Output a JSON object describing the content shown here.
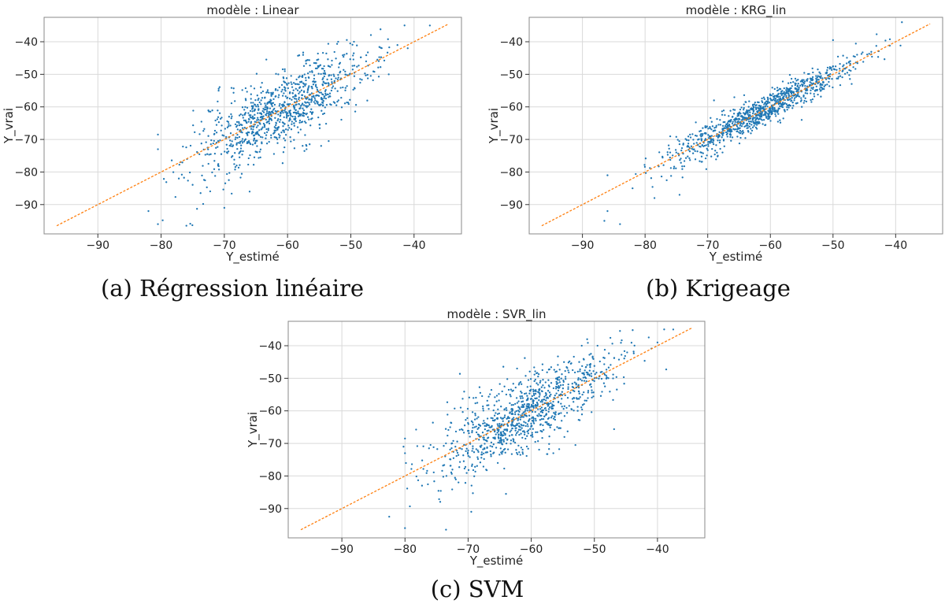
{
  "figure": {
    "captions": [
      "(a) Régression linéaire",
      "(b) Krigeage",
      "(c) SVM"
    ]
  },
  "colors": {
    "points": "#1f77b4",
    "line": "#ff7f0e",
    "grid": "#d9d9d9",
    "frame": "#888888"
  },
  "chart_data": [
    {
      "type": "scatter",
      "title": "modèle : Linear",
      "xlabel": "Y_estimé",
      "ylabel": "Y_vrai",
      "xlim": [
        -98.5,
        -32.5
      ],
      "ylim": [
        -99,
        -32.5
      ],
      "xticks": [
        -90,
        -80,
        -70,
        -60,
        -50,
        -40
      ],
      "yticks": [
        -40,
        -50,
        -60,
        -70,
        -80,
        -90
      ],
      "xtick_labels": [
        "−90",
        "−80",
        "−70",
        "−60",
        "−50",
        "−40"
      ],
      "ytick_labels": [
        "−40",
        "−50",
        "−60",
        "−70",
        "−80",
        "−90"
      ],
      "grid": true,
      "reference_line": {
        "from": [
          -96.5,
          -96.5
        ],
        "to": [
          -34.5,
          -34.5
        ],
        "style": "dashed"
      },
      "n_points": 1000,
      "point_spread": 5.5,
      "x_range_points": [
        -82,
        -38
      ],
      "sample_points": [
        {
          "x": -82,
          "y": -92
        },
        {
          "x": -80.5,
          "y": -68.5
        },
        {
          "x": -80.5,
          "y": -73
        },
        {
          "x": -80.5,
          "y": -96
        },
        {
          "x": -76,
          "y": -96.5
        },
        {
          "x": -70,
          "y": -91
        },
        {
          "x": -53.5,
          "y": -70.5
        },
        {
          "x": -57,
          "y": -73
        },
        {
          "x": -52,
          "y": -40
        },
        {
          "x": -49.5,
          "y": -40
        },
        {
          "x": -37.5,
          "y": -35
        },
        {
          "x": -41,
          "y": -42
        },
        {
          "x": -44,
          "y": -50
        },
        {
          "x": -66,
          "y": -86
        }
      ]
    },
    {
      "type": "scatter",
      "title": "modèle : KRG_lin",
      "xlabel": "Y_estimé",
      "ylabel": "Y_vrai",
      "xlim": [
        -98.5,
        -32.5
      ],
      "ylim": [
        -99,
        -32.5
      ],
      "xticks": [
        -90,
        -80,
        -70,
        -60,
        -50,
        -40
      ],
      "yticks": [
        -40,
        -50,
        -60,
        -70,
        -80,
        -90
      ],
      "xtick_labels": [
        "−90",
        "−80",
        "−70",
        "−60",
        "−50",
        "−40"
      ],
      "ytick_labels": [
        "−40",
        "−50",
        "−60",
        "−70",
        "−80",
        "−90"
      ],
      "grid": true,
      "reference_line": {
        "from": [
          -96.5,
          -96.5
        ],
        "to": [
          -34.5,
          -34.5
        ],
        "style": "dashed"
      },
      "n_points": 1000,
      "point_spread": 2.3,
      "x_range_points": [
        -87,
        -39
      ],
      "sample_points": [
        {
          "x": -86.5,
          "y": -95
        },
        {
          "x": -86,
          "y": -92
        },
        {
          "x": -84,
          "y": -96
        },
        {
          "x": -86,
          "y": -81
        },
        {
          "x": -82,
          "y": -85
        },
        {
          "x": -78.5,
          "y": -88
        },
        {
          "x": -74.5,
          "y": -87
        },
        {
          "x": -50,
          "y": -39.5
        },
        {
          "x": -39,
          "y": -34
        },
        {
          "x": -55,
          "y": -64
        },
        {
          "x": -69,
          "y": -58
        },
        {
          "x": -76,
          "y": -74
        }
      ]
    },
    {
      "type": "scatter",
      "title": "modèle : SVR_lin",
      "xlabel": "Y_estimé",
      "ylabel": "Y_vrai",
      "xlim": [
        -98.5,
        -32.5
      ],
      "ylim": [
        -99,
        -32.5
      ],
      "xticks": [
        -90,
        -80,
        -70,
        -60,
        -50,
        -40
      ],
      "yticks": [
        -40,
        -50,
        -60,
        -70,
        -80,
        -90
      ],
      "xtick_labels": [
        "−90",
        "−80",
        "−70",
        "−60",
        "−50",
        "−40"
      ],
      "ytick_labels": [
        "−40",
        "−50",
        "−60",
        "−70",
        "−80",
        "−90"
      ],
      "grid": true,
      "reference_line": {
        "from": [
          -96.5,
          -96.5
        ],
        "to": [
          -34.5,
          -34.5
        ],
        "style": "dashed"
      },
      "n_points": 1000,
      "point_spread": 5.5,
      "x_range_points": [
        -82,
        -38
      ],
      "sample_points": [
        {
          "x": -82.5,
          "y": -92.5
        },
        {
          "x": -80,
          "y": -68.5
        },
        {
          "x": -80,
          "y": -73
        },
        {
          "x": -80,
          "y": -96
        },
        {
          "x": -73.5,
          "y": -96.5
        },
        {
          "x": -69.5,
          "y": -91
        },
        {
          "x": -53,
          "y": -70.5
        },
        {
          "x": -56.5,
          "y": -73
        },
        {
          "x": -52,
          "y": -40
        },
        {
          "x": -49.5,
          "y": -40
        },
        {
          "x": -37.5,
          "y": -35
        },
        {
          "x": -40,
          "y": -39
        },
        {
          "x": -64,
          "y": -85.5
        }
      ]
    }
  ]
}
